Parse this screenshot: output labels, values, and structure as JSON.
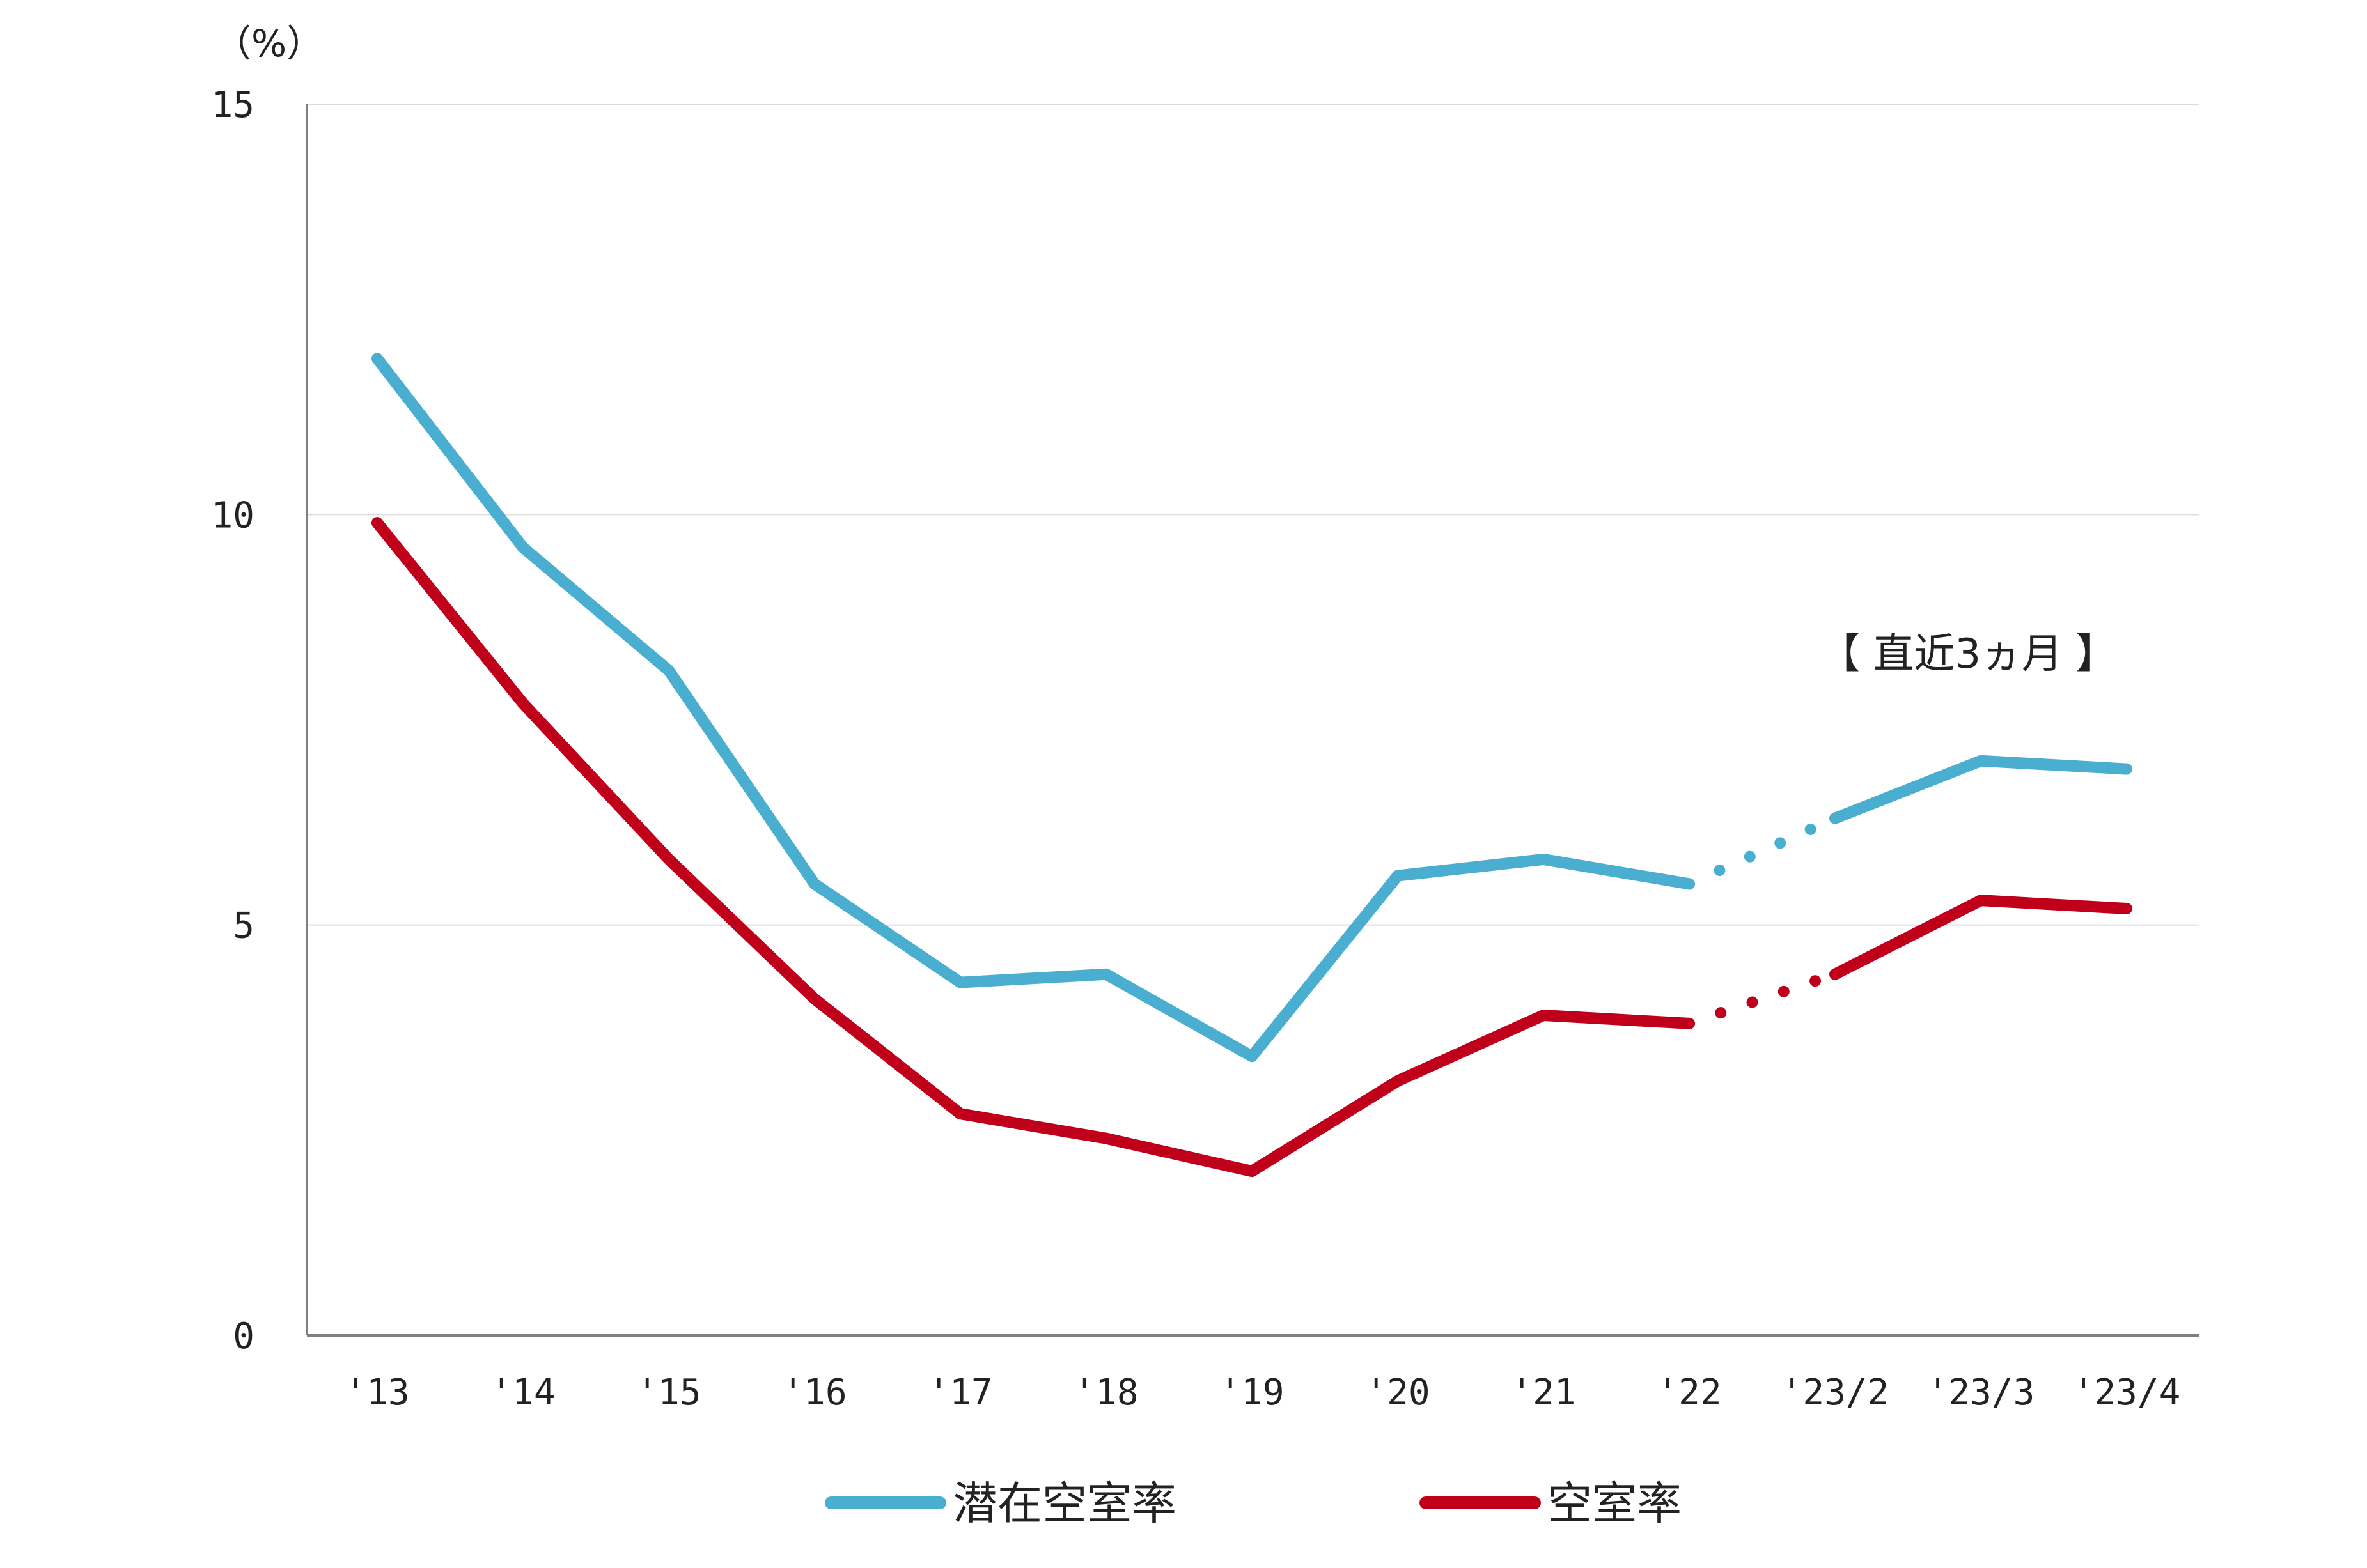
{
  "chart_data": {
    "type": "line",
    "unit_label": "（%）",
    "annotation": "【 直近3ヵ月 】",
    "categories": [
      "'13",
      "'14",
      "'15",
      "'16",
      "'17",
      "'18",
      "'19",
      "'20",
      "'21",
      "'22",
      "'23/2",
      "'23/3",
      "'23/4"
    ],
    "ylim": [
      0,
      15
    ],
    "yticks": [
      "0",
      "5",
      "10",
      "15"
    ],
    "grid": true,
    "legend_position": "bottom",
    "dotted_between": [
      "'22",
      "'23/2"
    ],
    "series": [
      {
        "name": "潜在空室率",
        "color": "#4aaed0",
        "values": [
          11.9,
          9.6,
          8.1,
          5.5,
          4.3,
          4.4,
          3.4,
          5.6,
          5.8,
          5.5,
          6.3,
          7.0,
          6.9
        ]
      },
      {
        "name": "空室率",
        "color": "#c0001a",
        "values": [
          9.9,
          7.7,
          5.8,
          4.1,
          2.7,
          2.4,
          2.0,
          3.1,
          3.9,
          3.8,
          4.4,
          5.3,
          5.2
        ]
      }
    ]
  }
}
